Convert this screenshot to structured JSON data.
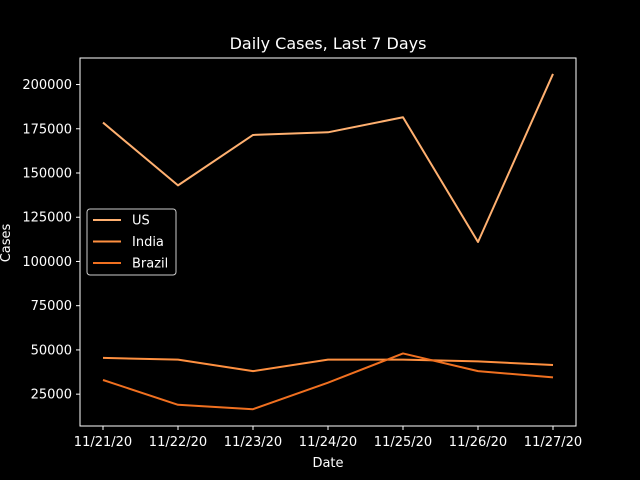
{
  "chart_data": {
    "type": "line",
    "title": "Daily Cases, Last 7 Days",
    "xlabel": "Date",
    "ylabel": "Cases",
    "categories": [
      "11/21/20",
      "11/22/20",
      "11/23/20",
      "11/24/20",
      "11/25/20",
      "11/26/20",
      "11/27/20"
    ],
    "yticks": [
      25000,
      50000,
      75000,
      100000,
      125000,
      150000,
      175000,
      200000
    ],
    "ytick_labels": [
      "25000",
      "50000",
      "75000",
      "100000",
      "125000",
      "150000",
      "175000",
      "200000"
    ],
    "ylim": [
      7000,
      215000
    ],
    "grid": false,
    "legend_position": "center-left",
    "series": [
      {
        "name": "US",
        "color": "#ffb070",
        "values": [
          178500,
          143000,
          171500,
          173000,
          181500,
          111000,
          206000
        ]
      },
      {
        "name": "India",
        "color": "#ff9040",
        "values": [
          45500,
          44500,
          38000,
          44500,
          44500,
          43500,
          41500
        ]
      },
      {
        "name": "Brazil",
        "color": "#f07020",
        "values": [
          33000,
          19000,
          16500,
          31500,
          48000,
          38000,
          34500
        ]
      }
    ],
    "colors": {
      "background": "#000000",
      "axes": "#ffffff",
      "text": "#ffffff"
    }
  }
}
